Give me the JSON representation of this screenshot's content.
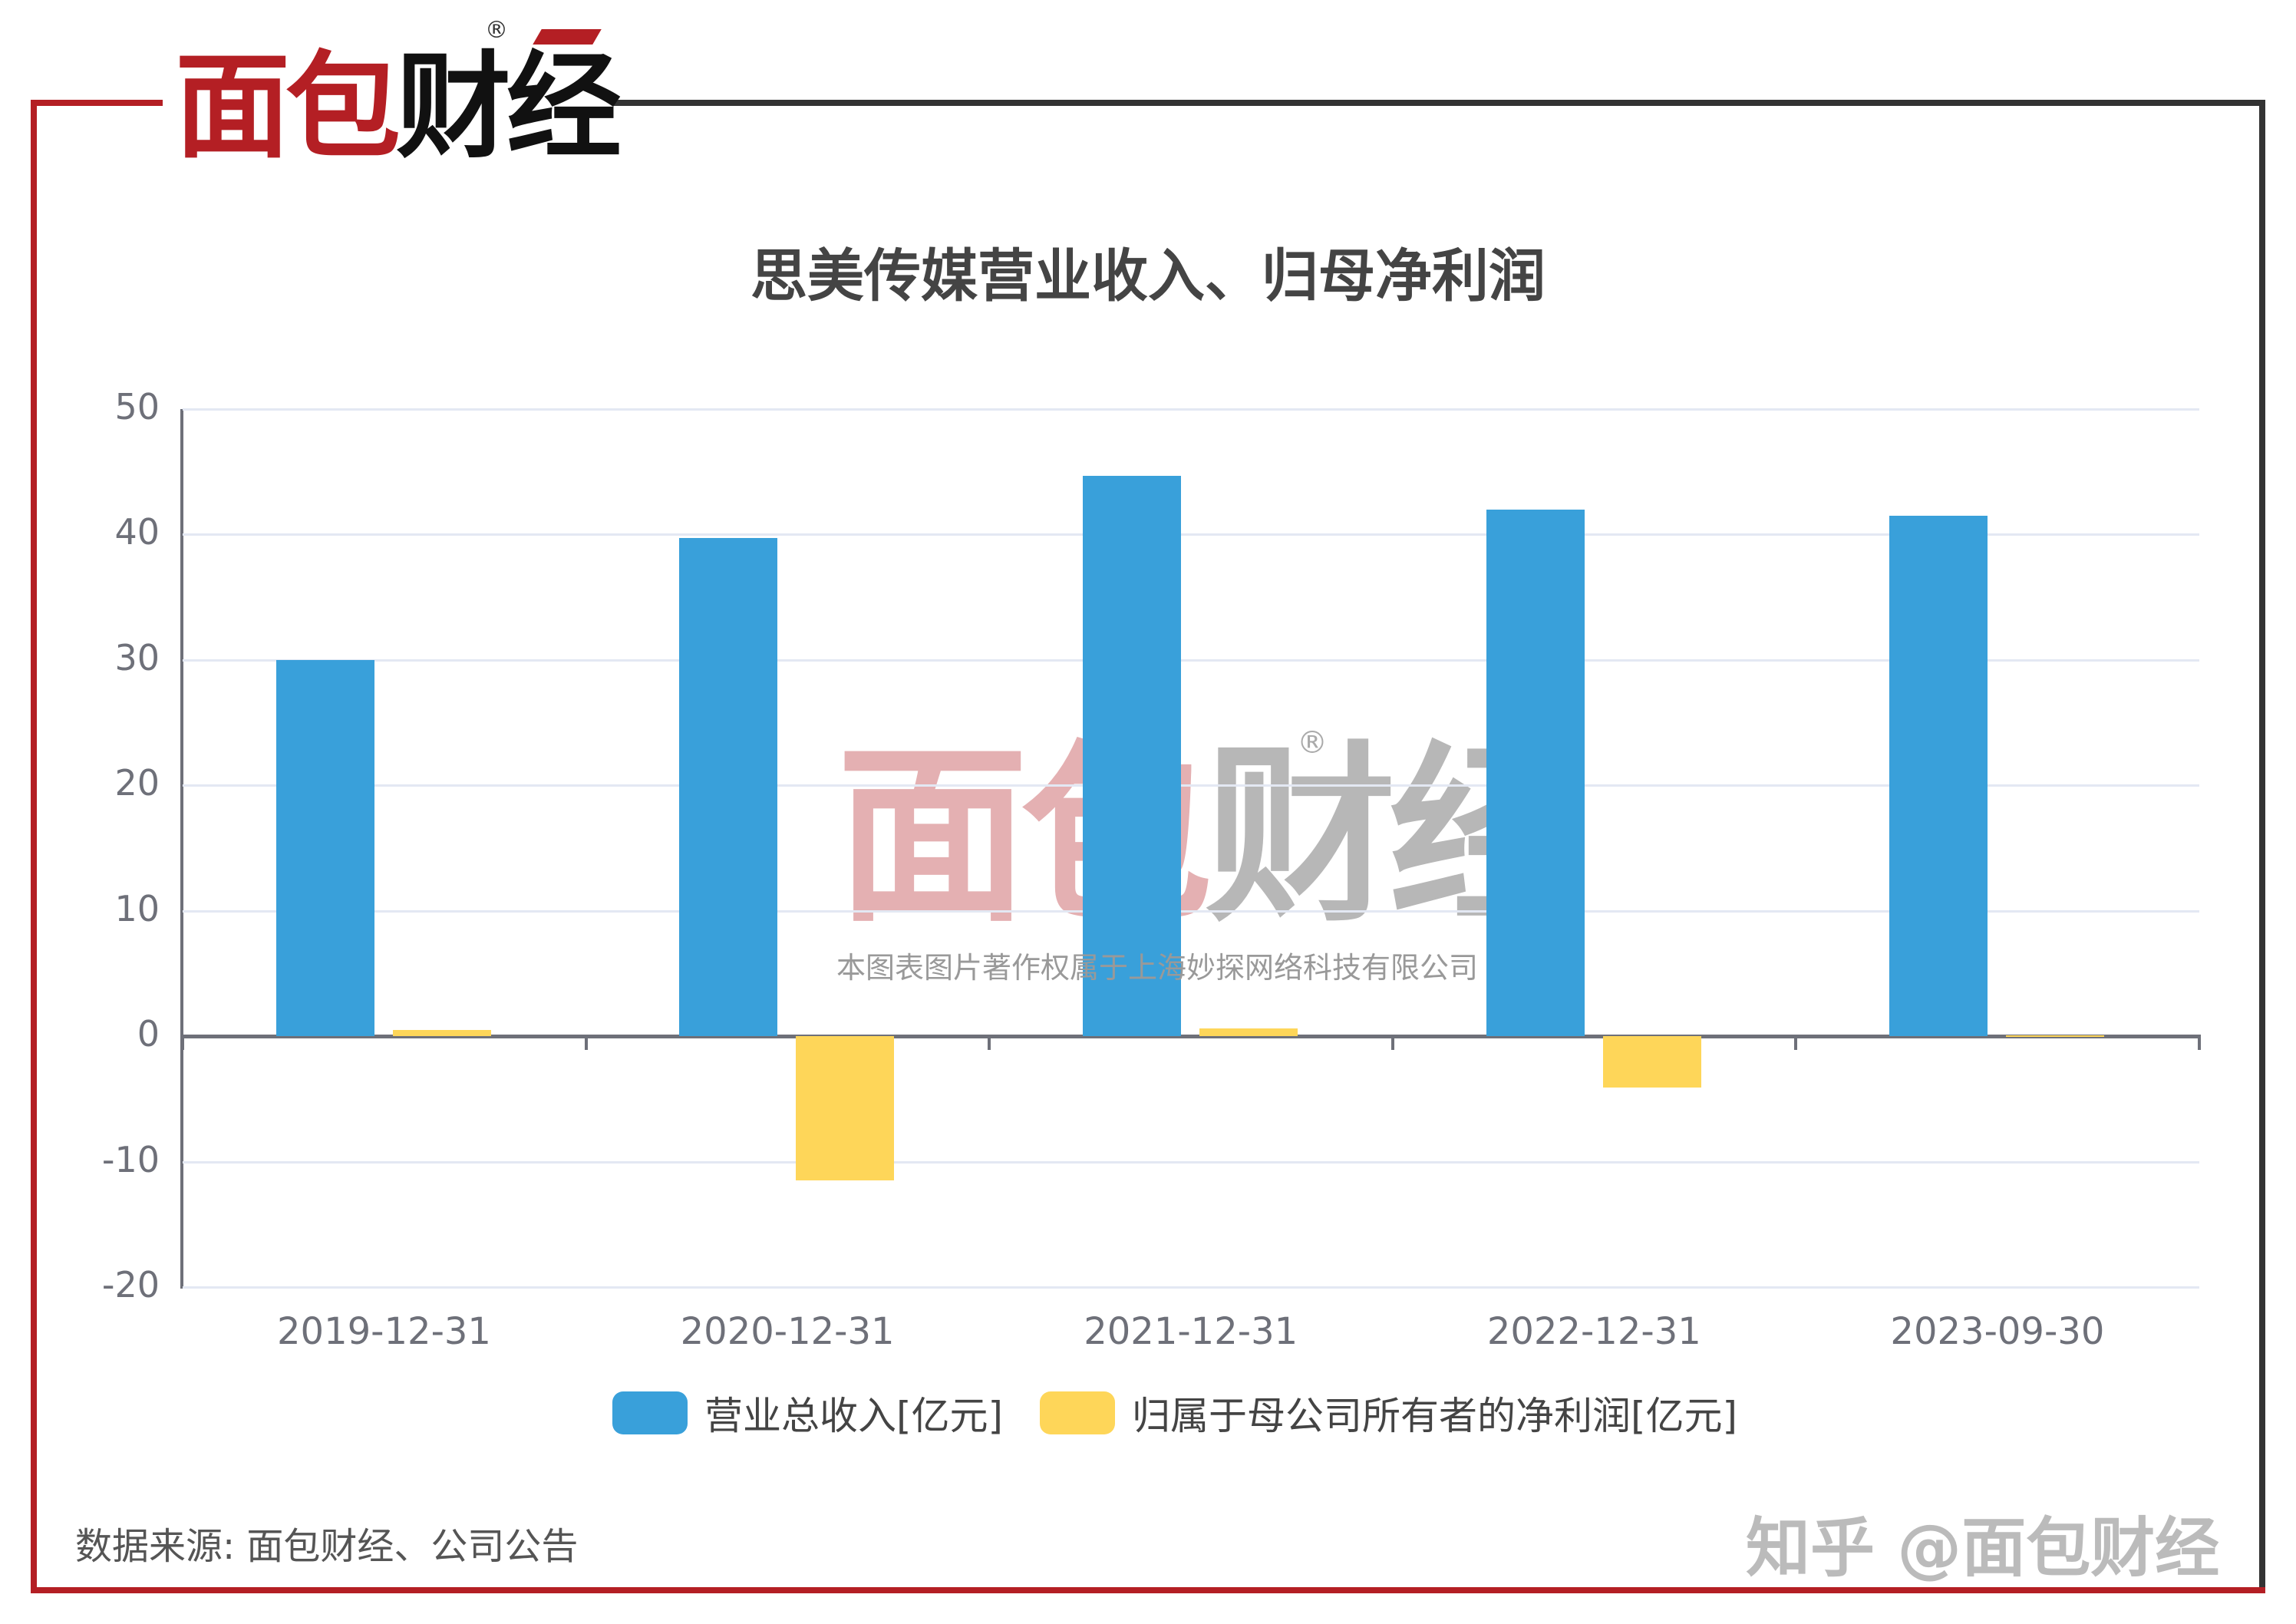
{
  "brand": {
    "logo_part1": "面包",
    "logo_part2": "财经",
    "registered_mark": "®"
  },
  "title": "思美传媒营业收入、归母净利润",
  "watermark": {
    "logo_part1": "面包",
    "logo_part2": "财经",
    "registered_mark": "®",
    "copyright": "本图表图片著作权属于上海妙探网络科技有限公司"
  },
  "legend": [
    {
      "label": "营业总收入[亿元]",
      "color": "#39a0da"
    },
    {
      "label": "归属于母公司所有者的净利润[亿元]",
      "color": "#fed659"
    }
  ],
  "footer": {
    "source": "数据来源: 面包财经、公司公告",
    "zhihu_watermark": "知乎 @面包财经"
  },
  "colors": {
    "frame_red": "#b41f24",
    "frame_dark": "#333333",
    "revenue": "#39a0da",
    "net_profit": "#fed659"
  },
  "chart_data": {
    "type": "bar",
    "title": "思美传媒营业收入、归母净利润",
    "xlabel": "",
    "ylabel": "",
    "categories": [
      "2019-12-31",
      "2020-12-31",
      "2021-12-31",
      "2022-12-31",
      "2023-09-30"
    ],
    "series": [
      {
        "name": "营业总收入[亿元]",
        "values": [
          30.0,
          39.7,
          44.7,
          42.0,
          41.5
        ]
      },
      {
        "name": "归属于母公司所有者的净利润[亿元]",
        "values": [
          0.5,
          -11.5,
          0.6,
          -4.1,
          0.1
        ]
      }
    ],
    "ylim": [
      -20,
      50
    ],
    "yticks": [
      "50",
      "40",
      "30",
      "20",
      "10",
      "0",
      "-10",
      "-20"
    ],
    "grid": true,
    "legend_position": "bottom"
  }
}
